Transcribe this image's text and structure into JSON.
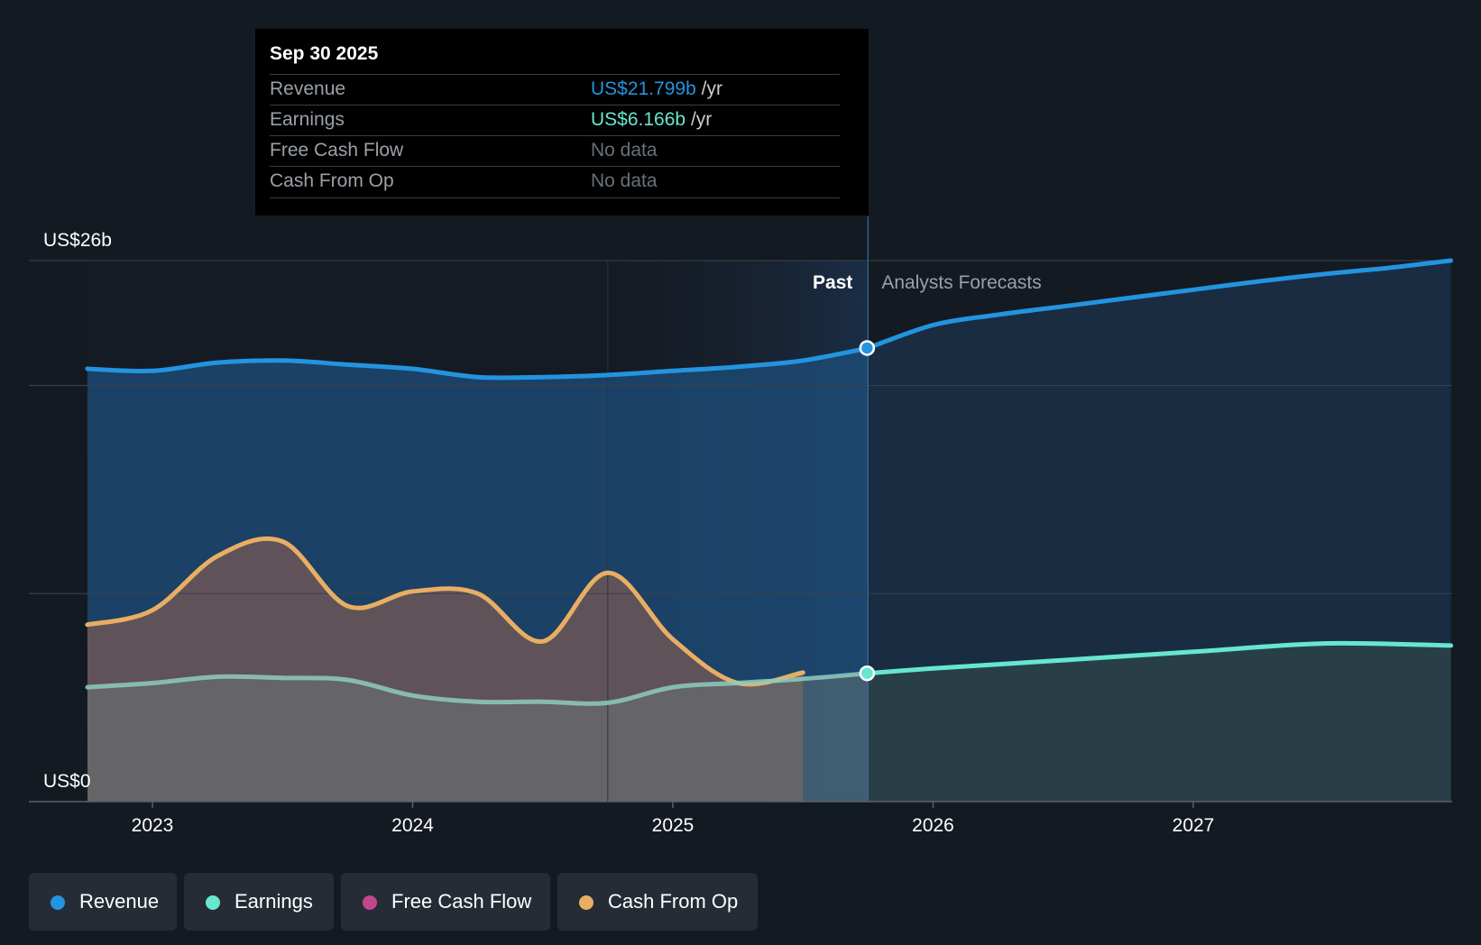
{
  "tooltip": {
    "date": "Sep 30 2025",
    "rows": [
      {
        "label": "Revenue",
        "value": "US$21.799b",
        "unit": "/yr",
        "color": "#2394df"
      },
      {
        "label": "Earnings",
        "value": "US$6.166b",
        "unit": "/yr",
        "color": "#67e6d0"
      },
      {
        "label": "Free Cash Flow",
        "value": "No data",
        "unit": "",
        "color": "#6a7077"
      },
      {
        "label": "Cash From Op",
        "value": "No data",
        "unit": "",
        "color": "#6a7077"
      }
    ]
  },
  "chart_data": {
    "type": "area",
    "y_max_label": "US$26b",
    "y_min_label": "US$0",
    "ylim": [
      0,
      26
    ],
    "xlim": [
      2022.58,
      2027.99
    ],
    "x_ticks": [
      2023,
      2024,
      2025,
      2026,
      2027
    ],
    "x_tick_labels": [
      "2023",
      "2024",
      "2025",
      "2026",
      "2027"
    ],
    "gridlines_y": [
      0,
      10,
      20,
      26
    ],
    "past_label": "Past",
    "forecast_label": "Analysts Forecasts",
    "divider_x": 2025.75,
    "series": [
      {
        "name": "Revenue",
        "color": "#2394df",
        "points": [
          [
            2022.75,
            20.8
          ],
          [
            2023.0,
            20.7
          ],
          [
            2023.25,
            21.1
          ],
          [
            2023.5,
            21.2
          ],
          [
            2023.75,
            21.0
          ],
          [
            2024.0,
            20.8
          ],
          [
            2024.25,
            20.4
          ],
          [
            2024.5,
            20.4
          ],
          [
            2024.75,
            20.5
          ],
          [
            2025.0,
            20.7
          ],
          [
            2025.25,
            20.9
          ],
          [
            2025.5,
            21.2
          ],
          [
            2025.75,
            21.799
          ]
        ],
        "forecast": [
          [
            2025.75,
            21.799
          ],
          [
            2026.0,
            22.9
          ],
          [
            2026.25,
            23.4
          ],
          [
            2026.5,
            23.8
          ],
          [
            2026.75,
            24.2
          ],
          [
            2027.0,
            24.6
          ],
          [
            2027.25,
            25.0
          ],
          [
            2027.5,
            25.35
          ],
          [
            2027.75,
            25.65
          ],
          [
            2027.99,
            26.0
          ]
        ]
      },
      {
        "name": "Earnings",
        "color": "#67e6d0",
        "points": [
          [
            2022.75,
            5.5
          ],
          [
            2023.0,
            5.7
          ],
          [
            2023.25,
            6.0
          ],
          [
            2023.5,
            5.95
          ],
          [
            2023.75,
            5.85
          ],
          [
            2024.0,
            5.1
          ],
          [
            2024.25,
            4.8
          ],
          [
            2024.5,
            4.8
          ],
          [
            2024.75,
            4.75
          ],
          [
            2025.0,
            5.5
          ],
          [
            2025.25,
            5.7
          ],
          [
            2025.5,
            5.9
          ],
          [
            2025.75,
            6.166
          ]
        ],
        "forecast": [
          [
            2025.75,
            6.166
          ],
          [
            2026.0,
            6.4
          ],
          [
            2026.5,
            6.8
          ],
          [
            2027.0,
            7.2
          ],
          [
            2027.5,
            7.6
          ],
          [
            2027.99,
            7.5
          ]
        ]
      },
      {
        "name": "Free Cash Flow",
        "color": "#c4468f",
        "points": []
      },
      {
        "name": "Cash From Op",
        "color": "#e9ae63",
        "points": [
          [
            2022.75,
            8.5
          ],
          [
            2023.0,
            9.2
          ],
          [
            2023.25,
            11.8
          ],
          [
            2023.5,
            12.5
          ],
          [
            2023.75,
            9.4
          ],
          [
            2024.0,
            10.1
          ],
          [
            2024.25,
            10.0
          ],
          [
            2024.5,
            7.7
          ],
          [
            2024.75,
            11.0
          ],
          [
            2025.0,
            7.8
          ],
          [
            2025.25,
            5.7
          ],
          [
            2025.5,
            6.2
          ]
        ]
      }
    ]
  },
  "legend": [
    {
      "label": "Revenue",
      "color": "#2394df"
    },
    {
      "label": "Earnings",
      "color": "#67e6d0"
    },
    {
      "label": "Free Cash Flow",
      "color": "#c4468f"
    },
    {
      "label": "Cash From Op",
      "color": "#e9ae63"
    }
  ]
}
